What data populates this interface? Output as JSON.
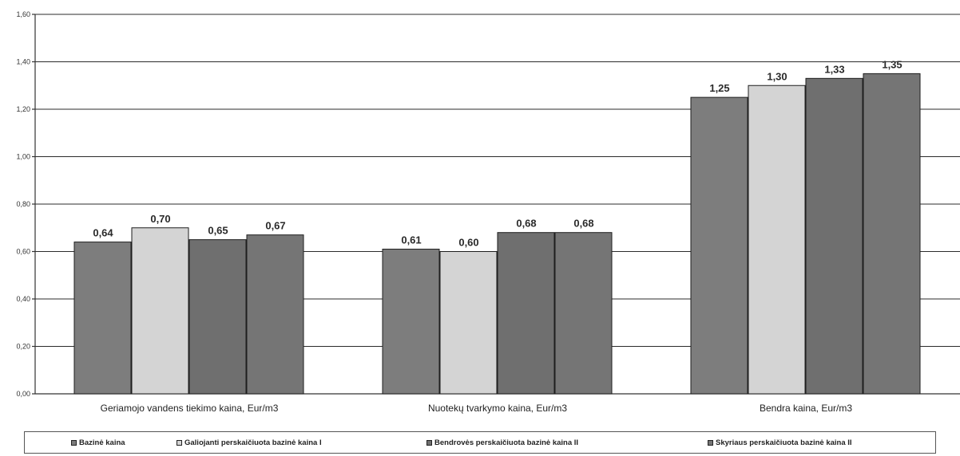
{
  "chart_data": {
    "type": "bar",
    "categories": [
      "Geriamojo vandens tiekimo kaina, Eur/m3",
      "Nuotekų tvarkymo kaina, Eur/m3",
      "Bendra kaina, Eur/m3"
    ],
    "series": [
      {
        "name": "Bazinė kaina",
        "values": [
          0.64,
          0.61,
          1.25
        ],
        "labels": [
          "0,64",
          "0,61",
          "1,25"
        ],
        "color": "#7d7d7d"
      },
      {
        "name": "Galiojanti perskaičiuota bazinė kaina I",
        "values": [
          0.7,
          0.6,
          1.3
        ],
        "labels": [
          "0,70",
          "0,60",
          "1,30"
        ],
        "color": "#d4d4d4"
      },
      {
        "name": "Bendrovės perskaičiuota bazinė kaina II",
        "values": [
          0.65,
          0.68,
          1.33
        ],
        "labels": [
          "0,65",
          "0,68",
          "1,33"
        ],
        "color": "#6f6f6f"
      },
      {
        "name": "Skyriaus perskaičiuota bazinė kaina II",
        "values": [
          0.67,
          0.68,
          1.35
        ],
        "labels": [
          "0,67",
          "0,68",
          "1,35"
        ],
        "color": "#757575"
      }
    ],
    "y_ticks": [
      "0,00",
      "0,20",
      "0,40",
      "0,60",
      "0,80",
      "1,00",
      "1,20",
      "1,40",
      "1,60"
    ],
    "ylim": [
      0,
      1.6
    ],
    "title": "",
    "xlabel": "",
    "ylabel": "",
    "grid": true,
    "legend_position": "bottom"
  }
}
